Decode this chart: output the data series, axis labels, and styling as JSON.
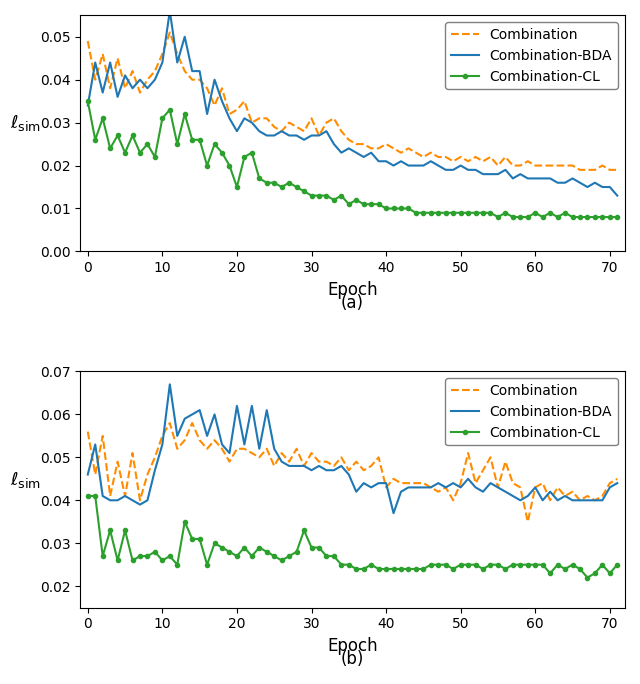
{
  "fig_width": 6.4,
  "fig_height": 6.84,
  "dpi": 100,
  "subplot_a": {
    "combination": [
      0.049,
      0.04,
      0.046,
      0.038,
      0.045,
      0.038,
      0.042,
      0.037,
      0.04,
      0.042,
      0.046,
      0.051,
      0.046,
      0.042,
      0.04,
      0.04,
      0.038,
      0.034,
      0.038,
      0.032,
      0.033,
      0.035,
      0.03,
      0.031,
      0.031,
      0.029,
      0.028,
      0.03,
      0.029,
      0.028,
      0.031,
      0.027,
      0.03,
      0.031,
      0.028,
      0.026,
      0.025,
      0.025,
      0.024,
      0.024,
      0.025,
      0.024,
      0.023,
      0.024,
      0.023,
      0.022,
      0.023,
      0.022,
      0.022,
      0.021,
      0.022,
      0.021,
      0.022,
      0.021,
      0.022,
      0.02,
      0.022,
      0.02,
      0.02,
      0.021,
      0.02,
      0.02,
      0.02,
      0.02,
      0.02,
      0.02,
      0.019,
      0.019,
      0.019,
      0.02,
      0.019,
      0.019
    ],
    "combination_bda": [
      0.034,
      0.044,
      0.037,
      0.044,
      0.036,
      0.041,
      0.038,
      0.04,
      0.038,
      0.04,
      0.044,
      0.056,
      0.044,
      0.05,
      0.042,
      0.042,
      0.032,
      0.04,
      0.035,
      0.031,
      0.028,
      0.031,
      0.03,
      0.028,
      0.027,
      0.027,
      0.028,
      0.027,
      0.027,
      0.026,
      0.027,
      0.027,
      0.028,
      0.025,
      0.023,
      0.024,
      0.023,
      0.022,
      0.023,
      0.021,
      0.021,
      0.02,
      0.021,
      0.02,
      0.02,
      0.02,
      0.021,
      0.02,
      0.019,
      0.019,
      0.02,
      0.019,
      0.019,
      0.018,
      0.018,
      0.018,
      0.019,
      0.017,
      0.018,
      0.017,
      0.017,
      0.017,
      0.017,
      0.016,
      0.016,
      0.017,
      0.016,
      0.015,
      0.016,
      0.015,
      0.015,
      0.013
    ],
    "combination_cl": [
      0.035,
      0.026,
      0.031,
      0.024,
      0.027,
      0.023,
      0.027,
      0.023,
      0.025,
      0.022,
      0.031,
      0.033,
      0.025,
      0.032,
      0.026,
      0.026,
      0.02,
      0.025,
      0.023,
      0.02,
      0.015,
      0.022,
      0.023,
      0.017,
      0.016,
      0.016,
      0.015,
      0.016,
      0.015,
      0.014,
      0.013,
      0.013,
      0.013,
      0.012,
      0.013,
      0.011,
      0.012,
      0.011,
      0.011,
      0.011,
      0.01,
      0.01,
      0.01,
      0.01,
      0.009,
      0.009,
      0.009,
      0.009,
      0.009,
      0.009,
      0.009,
      0.009,
      0.009,
      0.009,
      0.009,
      0.008,
      0.009,
      0.008,
      0.008,
      0.008,
      0.009,
      0.008,
      0.009,
      0.008,
      0.009,
      0.008,
      0.008,
      0.008,
      0.008,
      0.008,
      0.008,
      0.008
    ],
    "ylim": [
      0.0,
      0.055
    ],
    "yticks": [
      0.0,
      0.01,
      0.02,
      0.03,
      0.04,
      0.05
    ],
    "ylabel": "$\\ell_{\\rm sim}$",
    "xlabel": "Epoch",
    "label": "(a)"
  },
  "subplot_b": {
    "combination": [
      0.056,
      0.046,
      0.055,
      0.041,
      0.049,
      0.041,
      0.051,
      0.04,
      0.046,
      0.05,
      0.055,
      0.058,
      0.052,
      0.054,
      0.058,
      0.054,
      0.052,
      0.054,
      0.052,
      0.049,
      0.052,
      0.052,
      0.051,
      0.05,
      0.052,
      0.048,
      0.051,
      0.049,
      0.052,
      0.048,
      0.051,
      0.049,
      0.049,
      0.048,
      0.05,
      0.047,
      0.049,
      0.047,
      0.048,
      0.05,
      0.043,
      0.045,
      0.044,
      0.044,
      0.044,
      0.044,
      0.043,
      0.042,
      0.043,
      0.04,
      0.044,
      0.051,
      0.044,
      0.047,
      0.05,
      0.043,
      0.049,
      0.044,
      0.043,
      0.035,
      0.043,
      0.044,
      0.04,
      0.043,
      0.041,
      0.042,
      0.04,
      0.041,
      0.04,
      0.041,
      0.044,
      0.045
    ],
    "combination_bda": [
      0.046,
      0.053,
      0.041,
      0.04,
      0.04,
      0.041,
      0.04,
      0.039,
      0.04,
      0.047,
      0.053,
      0.067,
      0.055,
      0.059,
      0.06,
      0.061,
      0.055,
      0.06,
      0.053,
      0.051,
      0.062,
      0.053,
      0.062,
      0.052,
      0.061,
      0.052,
      0.049,
      0.048,
      0.048,
      0.048,
      0.047,
      0.048,
      0.047,
      0.047,
      0.048,
      0.046,
      0.042,
      0.044,
      0.043,
      0.044,
      0.044,
      0.037,
      0.042,
      0.043,
      0.043,
      0.043,
      0.043,
      0.044,
      0.043,
      0.044,
      0.043,
      0.045,
      0.043,
      0.042,
      0.044,
      0.043,
      0.042,
      0.041,
      0.04,
      0.041,
      0.043,
      0.04,
      0.042,
      0.04,
      0.041,
      0.04,
      0.04,
      0.04,
      0.04,
      0.04,
      0.043,
      0.044
    ],
    "combination_cl": [
      0.041,
      0.041,
      0.027,
      0.033,
      0.026,
      0.033,
      0.026,
      0.027,
      0.027,
      0.028,
      0.026,
      0.027,
      0.025,
      0.035,
      0.031,
      0.031,
      0.025,
      0.03,
      0.029,
      0.028,
      0.027,
      0.029,
      0.027,
      0.029,
      0.028,
      0.027,
      0.026,
      0.027,
      0.028,
      0.033,
      0.029,
      0.029,
      0.027,
      0.027,
      0.025,
      0.025,
      0.024,
      0.024,
      0.025,
      0.024,
      0.024,
      0.024,
      0.024,
      0.024,
      0.024,
      0.024,
      0.025,
      0.025,
      0.025,
      0.024,
      0.025,
      0.025,
      0.025,
      0.024,
      0.025,
      0.025,
      0.024,
      0.025,
      0.025,
      0.025,
      0.025,
      0.025,
      0.023,
      0.025,
      0.024,
      0.025,
      0.024,
      0.022,
      0.023,
      0.025,
      0.023,
      0.025
    ],
    "ylim": [
      0.015,
      0.07
    ],
    "yticks": [
      0.02,
      0.03,
      0.04,
      0.05,
      0.06,
      0.07
    ],
    "ylabel": "$\\ell_{\\rm sim}$",
    "xlabel": "Epoch",
    "label": "(b)"
  },
  "colors": {
    "combination": "#FF8C00",
    "combination_bda": "#1f77b4",
    "combination_cl": "#2ca02c"
  },
  "legend_labels": {
    "combination": "Combination",
    "combination_bda": "Combination-BDA",
    "combination_cl": "Combination-CL"
  },
  "xticks": [
    0,
    10,
    20,
    30,
    40,
    50,
    60,
    70
  ],
  "xlim": [
    -1,
    72
  ]
}
